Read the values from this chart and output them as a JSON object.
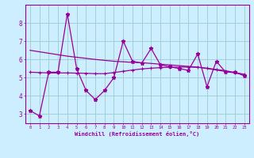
{
  "x": [
    0,
    1,
    2,
    3,
    4,
    5,
    6,
    7,
    8,
    9,
    10,
    11,
    12,
    13,
    14,
    15,
    16,
    17,
    18,
    19,
    20,
    21,
    22,
    23
  ],
  "line1": [
    3.2,
    2.9,
    5.3,
    5.3,
    8.5,
    5.5,
    4.3,
    3.8,
    4.3,
    5.0,
    7.0,
    5.9,
    5.8,
    6.6,
    5.7,
    5.6,
    5.5,
    5.4,
    6.3,
    4.5,
    5.9,
    5.3,
    5.3,
    5.1
  ],
  "line3_smooth": [
    5.3,
    5.28,
    5.26,
    5.26,
    5.26,
    5.25,
    5.24,
    5.22,
    5.22,
    5.28,
    5.35,
    5.42,
    5.48,
    5.52,
    5.55,
    5.57,
    5.58,
    5.58,
    5.57,
    5.52,
    5.45,
    5.38,
    5.28,
    5.18
  ],
  "line4_smooth": [
    6.5,
    6.42,
    6.34,
    6.26,
    6.18,
    6.12,
    6.06,
    6.0,
    5.95,
    5.9,
    5.87,
    5.84,
    5.82,
    5.78,
    5.74,
    5.7,
    5.66,
    5.62,
    5.58,
    5.5,
    5.42,
    5.34,
    5.26,
    5.18
  ],
  "bg_color": "#cceeff",
  "line_color": "#990099",
  "grid_color": "#99cccc",
  "xlabel": "Windchill (Refroidissement éolien,°C)",
  "ylim": [
    2.5,
    9.0
  ],
  "xlim": [
    -0.5,
    23.5
  ],
  "yticks": [
    3,
    4,
    5,
    6,
    7,
    8
  ],
  "xticks": [
    0,
    1,
    2,
    3,
    4,
    5,
    6,
    7,
    8,
    9,
    10,
    11,
    12,
    13,
    14,
    15,
    16,
    17,
    18,
    19,
    20,
    21,
    22,
    23
  ]
}
